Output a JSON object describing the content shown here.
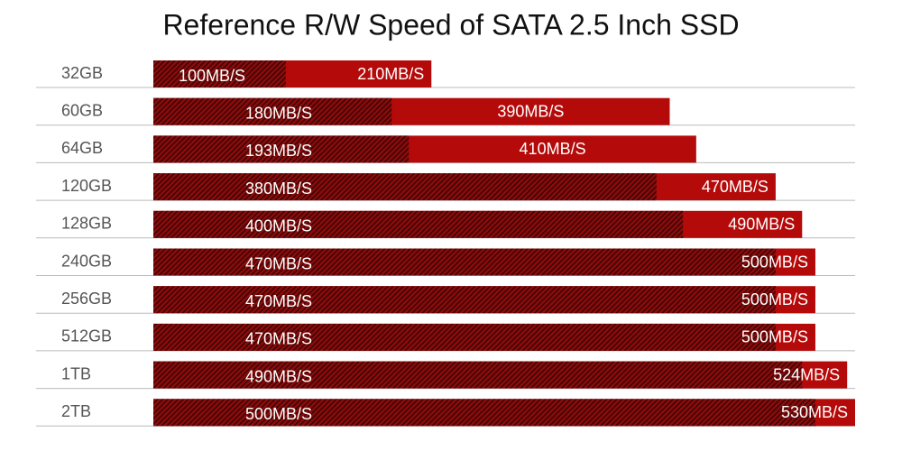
{
  "chart_data": {
    "type": "overlay-bar",
    "title": "Reference R/W Speed of SATA 2.5 Inch SSD",
    "categories": [
      "32GB",
      "60GB",
      "64GB",
      "120GB",
      "128GB",
      "240GB",
      "256GB",
      "512GB",
      "1TB",
      "2TB"
    ],
    "series": [
      {
        "color": "#b50a0a",
        "values": [
          210,
          390,
          410,
          470,
          490,
          500,
          500,
          500,
          524,
          530
        ],
        "value_labels": [
          "210MB/S",
          "390MB/S",
          "410MB/S",
          "470MB/S",
          "490MB/S",
          "500MB/S",
          "500MB/S",
          "500MB/S",
          "524MB/S",
          "530MB/S"
        ]
      },
      {
        "color": "#3a0606",
        "values": [
          100,
          180,
          193,
          380,
          400,
          470,
          470,
          470,
          490,
          500
        ],
        "value_labels": [
          "100MB/S",
          "180MB/S",
          "193MB/S",
          "380MB/S",
          "400MB/S",
          "470MB/S",
          "470MB/S",
          "470MB/S",
          "490MB/S",
          "500MB/S"
        ]
      }
    ]
  }
}
